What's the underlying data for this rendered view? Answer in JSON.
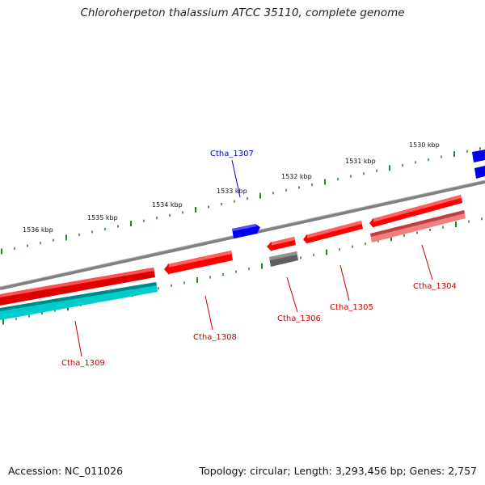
{
  "title": "Chloroherpeton thalassium ATCC 35110, complete genome",
  "footer": {
    "accession": "Accession: NC_011026",
    "summary": "Topology: circular; Length: 3,293,456 bp; Genes: 2,757"
  },
  "colors": {
    "backbone": "#808080",
    "tick": "#1f8a1f",
    "label_red": "#cc0000",
    "label_blue": "#0000cc",
    "gene_red": "#ff0000",
    "gene_pink": "#f08080",
    "gene_cyan": "#00cccc",
    "gene_gray": "#555555",
    "gene_blue": "#0000ee"
  },
  "scale_labels": [
    "1536 kbp",
    "1535 kbp",
    "1534 kbp",
    "1533 kbp",
    "1532 kbp",
    "1531 kbp",
    "1530 kbp"
  ],
  "genes": [
    {
      "label": "Ctha_1304",
      "color": "red"
    },
    {
      "label": "Ctha_1305",
      "color": "red"
    },
    {
      "label": "Ctha_1306",
      "color": "red"
    },
    {
      "label": "Ctha_1307",
      "color": "blue"
    },
    {
      "label": "Ctha_1308",
      "color": "red"
    },
    {
      "label": "Ctha_1309",
      "color": "red"
    }
  ]
}
